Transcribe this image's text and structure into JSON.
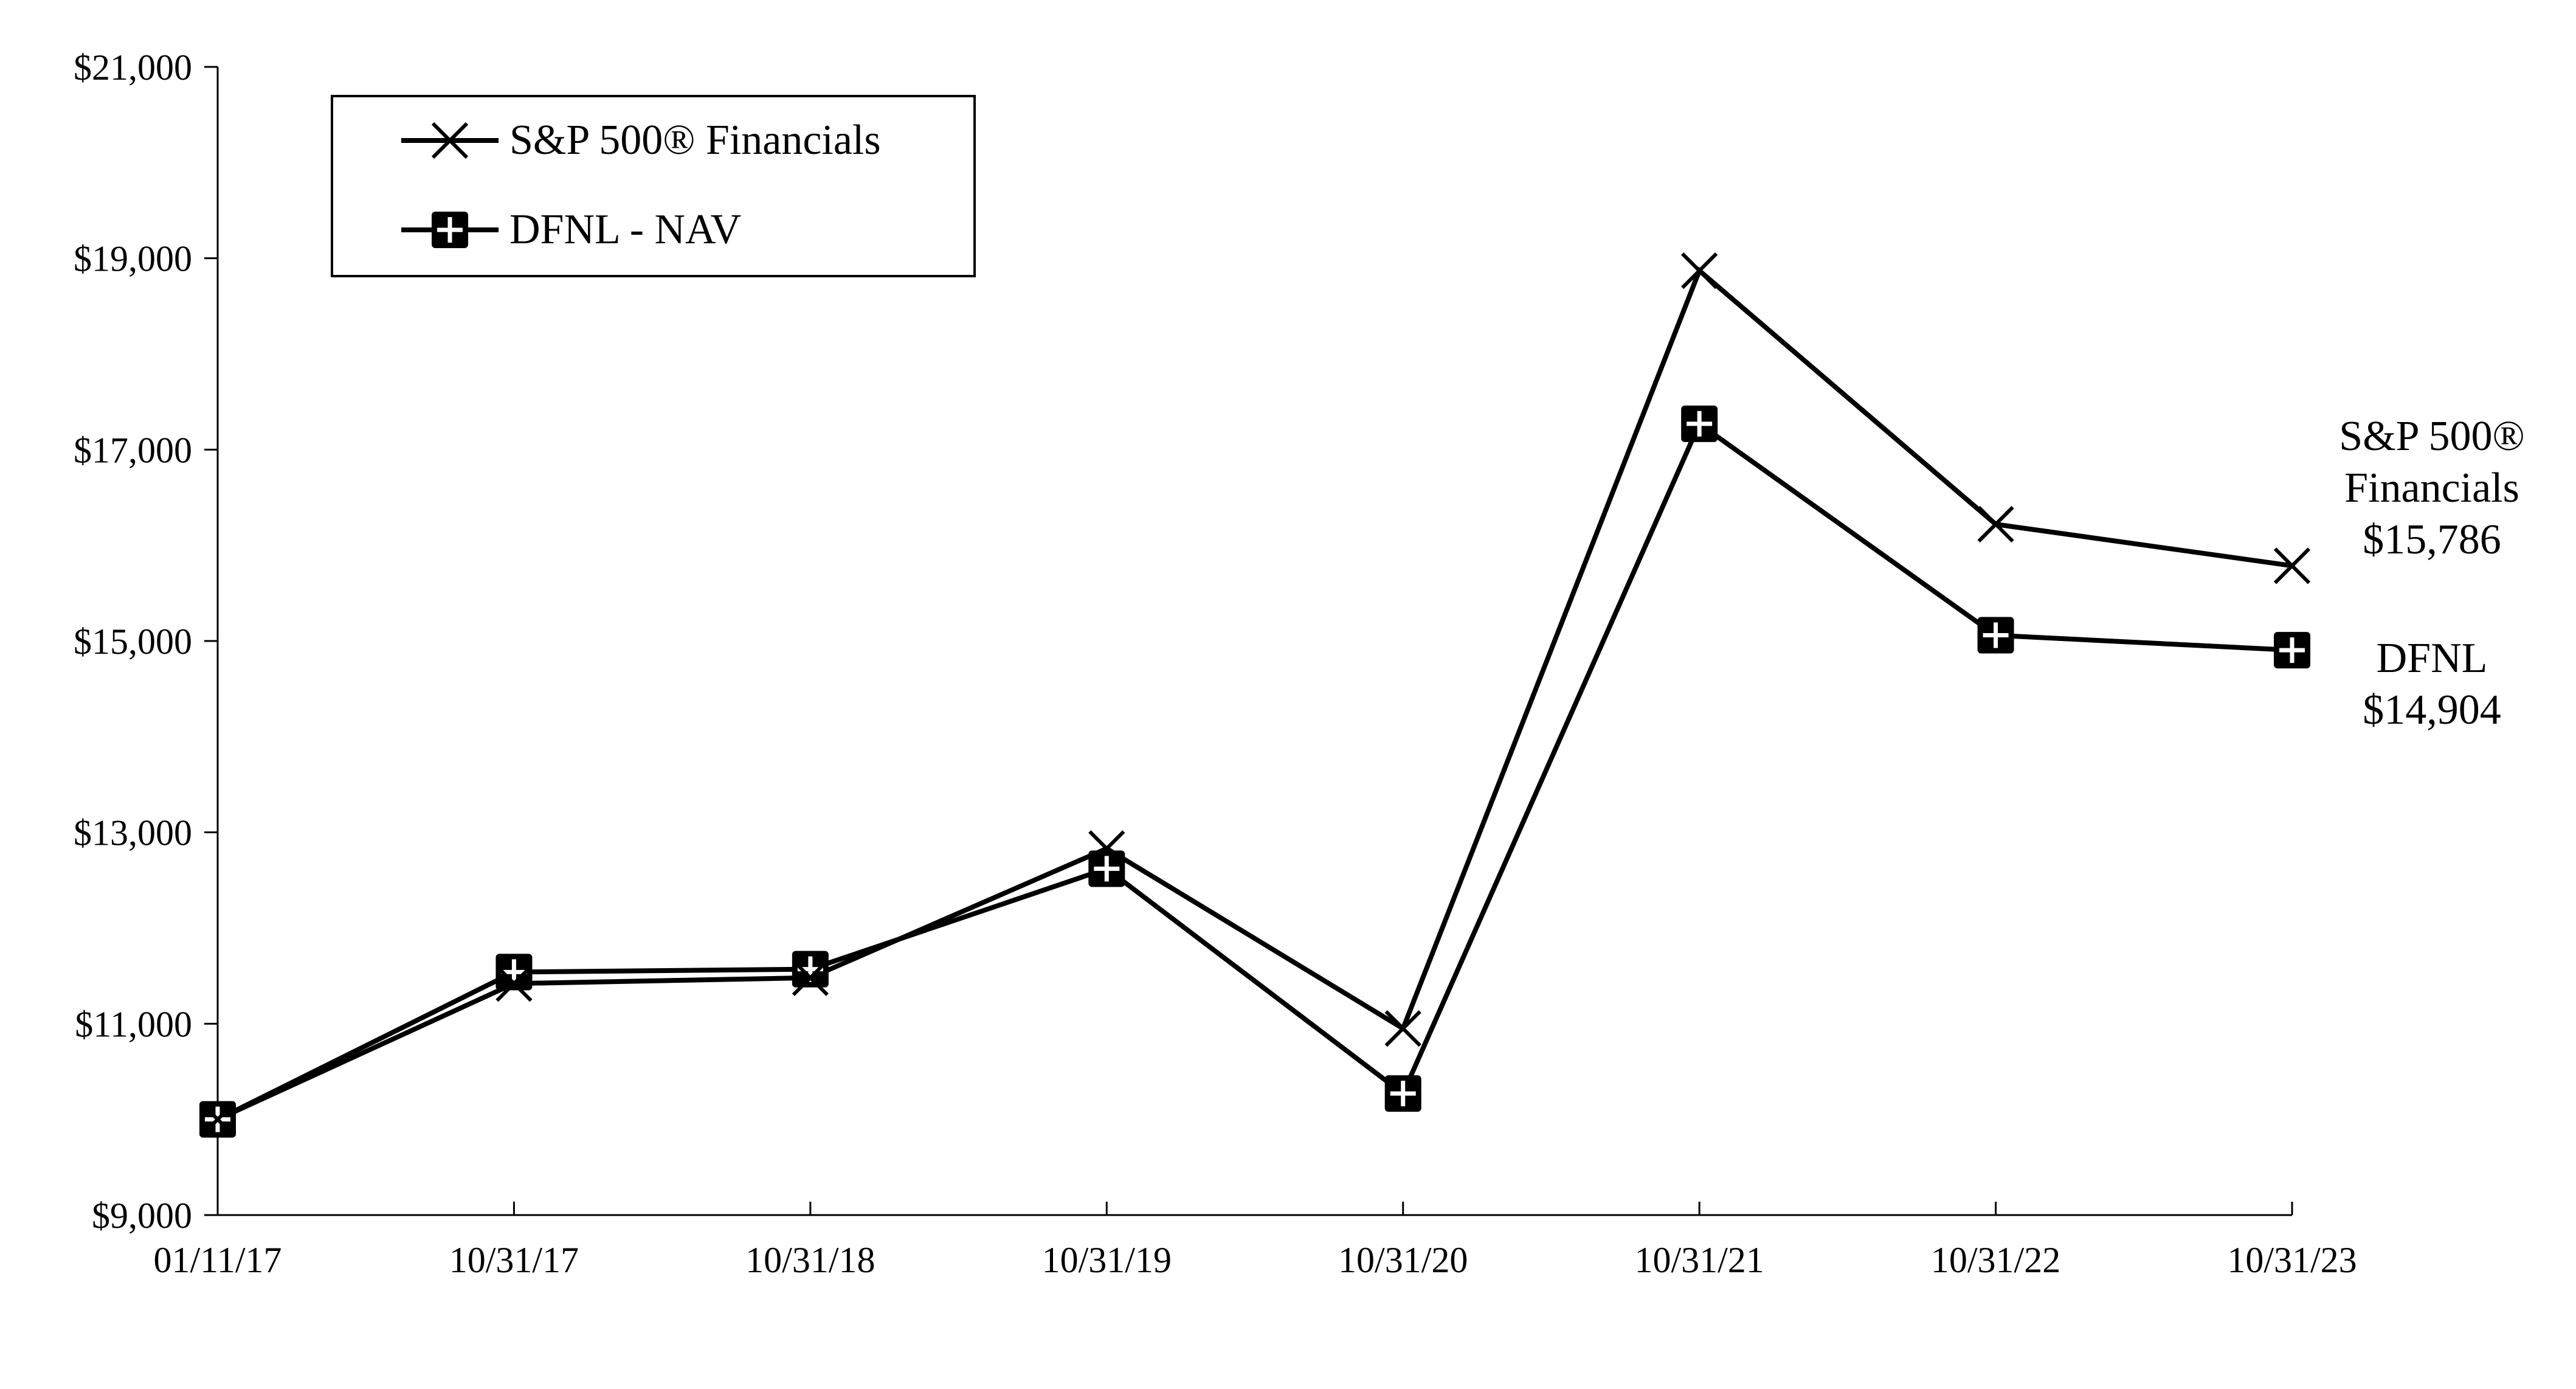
{
  "chart_data": {
    "type": "line",
    "categories": [
      "01/11/17",
      "10/31/17",
      "10/31/18",
      "10/31/19",
      "10/31/20",
      "10/31/21",
      "10/31/22",
      "10/31/23"
    ],
    "y_ticks": [
      "$9,000",
      "$11,000",
      "$13,000",
      "$15,000",
      "$17,000",
      "$19,000",
      "$21,000"
    ],
    "ylim": [
      9000,
      21000
    ],
    "grid": false,
    "legend_placement": "top-left",
    "series": [
      {
        "name": "S&P 500® Financials",
        "marker": "x",
        "color": "#000000",
        "values": [
          10000,
          11420,
          11480,
          12830,
          10950,
          18870,
          16220,
          15786
        ]
      },
      {
        "name": "DFNL - NAV",
        "marker": "square-cross",
        "color": "#000000",
        "values": [
          10000,
          11540,
          11570,
          12620,
          10270,
          17270,
          15060,
          14904
        ]
      }
    ],
    "annotations": [
      {
        "series": 0,
        "lines": [
          "S&P 500®",
          "Financials",
          "$15,786"
        ]
      },
      {
        "series": 1,
        "lines": [
          "DFNL",
          "$14,904"
        ]
      }
    ]
  }
}
